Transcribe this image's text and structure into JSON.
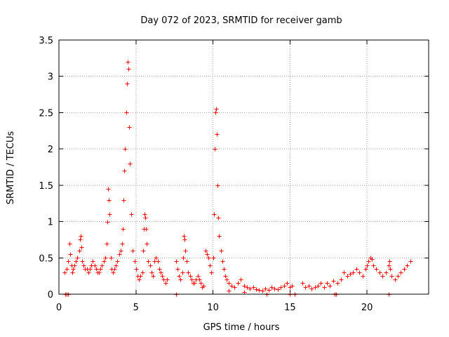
{
  "chart_data": {
    "type": "scatter",
    "title": "Day 072 of 2023, SRMTID for receiver gamb",
    "xlabel": "GPS time / hours",
    "ylabel": "SRMTID / TECUs",
    "xlim": [
      0,
      24
    ],
    "ylim": [
      0,
      3.5
    ],
    "xticks": [
      0,
      5,
      10,
      15,
      20
    ],
    "xtick_labels": [
      "0",
      "5",
      "10",
      "15",
      "20"
    ],
    "yticks": [
      0,
      0.5,
      1,
      1.5,
      2,
      2.5,
      3,
      3.5
    ],
    "ytick_labels": [
      "0",
      "0.5",
      "1",
      "1.5",
      "2",
      "2.5",
      "3",
      "3.5"
    ],
    "grid": true,
    "marker": "+",
    "color": "#ff0000",
    "series": [
      {
        "name": "gamb",
        "x": [
          0.35,
          0.5,
          0.6,
          0.7,
          0.75,
          0.8,
          0.85,
          0.9,
          1.0,
          1.1,
          1.2,
          1.3,
          1.35,
          1.4,
          1.45,
          1.5,
          1.6,
          1.7,
          1.8,
          1.9,
          2.0,
          2.1,
          2.2,
          2.3,
          2.4,
          2.5,
          2.6,
          2.7,
          2.8,
          2.9,
          3.0,
          3.1,
          3.15,
          3.2,
          3.25,
          3.3,
          3.35,
          3.4,
          3.5,
          3.6,
          3.7,
          3.8,
          3.9,
          4.0,
          4.1,
          4.15,
          4.2,
          4.25,
          4.3,
          4.35,
          4.4,
          4.45,
          4.5,
          4.55,
          4.6,
          4.7,
          4.8,
          4.9,
          5.0,
          5.1,
          5.2,
          5.3,
          5.4,
          5.45,
          5.5,
          5.55,
          5.6,
          5.65,
          5.7,
          5.8,
          5.9,
          6.0,
          6.1,
          6.2,
          6.3,
          6.4,
          6.5,
          6.6,
          6.7,
          6.8,
          6.9,
          7.0,
          7.6,
          7.7,
          7.8,
          7.9,
          8.0,
          8.05,
          8.1,
          8.15,
          8.2,
          8.3,
          8.4,
          8.5,
          8.6,
          8.7,
          8.8,
          8.9,
          9.0,
          9.1,
          9.2,
          9.3,
          9.4,
          9.5,
          9.6,
          9.7,
          9.8,
          9.9,
          10.0,
          10.05,
          10.1,
          10.15,
          10.2,
          10.25,
          10.3,
          10.35,
          10.4,
          10.5,
          10.6,
          10.7,
          10.8,
          10.9,
          11.0,
          11.2,
          11.4,
          11.6,
          11.8,
          12.0,
          12.2,
          12.4,
          12.6,
          12.8,
          13.0,
          13.2,
          13.4,
          13.6,
          13.8,
          14.0,
          14.2,
          14.4,
          14.6,
          14.8,
          15.0,
          15.1,
          15.8,
          16.0,
          16.2,
          16.4,
          16.6,
          16.8,
          17.0,
          17.2,
          17.4,
          17.6,
          17.8,
          18.1,
          18.3,
          18.5,
          18.7,
          18.9,
          19.1,
          19.3,
          19.5,
          19.7,
          19.9,
          20.0,
          20.1,
          20.2,
          20.3,
          20.4,
          20.6,
          20.8,
          21.0,
          21.2,
          21.4,
          21.45,
          21.5,
          21.6,
          21.8,
          22.0,
          22.2,
          22.4,
          22.6,
          22.8,
          0.4,
          0.5,
          0.6,
          7.6,
          11.0,
          12.0,
          13.5,
          15.0,
          15.3,
          17.9,
          18.0,
          21.4
        ],
        "y": [
          0.3,
          0.35,
          0.45,
          0.7,
          0.55,
          0.4,
          0.3,
          0.35,
          0.4,
          0.45,
          0.5,
          0.6,
          0.75,
          0.8,
          0.65,
          0.45,
          0.4,
          0.35,
          0.35,
          0.3,
          0.35,
          0.4,
          0.45,
          0.4,
          0.35,
          0.3,
          0.3,
          0.35,
          0.4,
          0.45,
          0.5,
          0.7,
          1.0,
          1.45,
          1.3,
          1.1,
          0.5,
          0.35,
          0.3,
          0.35,
          0.4,
          0.45,
          0.55,
          0.6,
          0.7,
          0.9,
          1.3,
          1.7,
          2.0,
          2.5,
          2.9,
          3.2,
          3.1,
          2.3,
          1.8,
          1.1,
          0.6,
          0.45,
          0.35,
          0.25,
          0.2,
          0.25,
          0.3,
          0.6,
          0.9,
          1.1,
          1.05,
          0.9,
          0.7,
          0.45,
          0.4,
          0.3,
          0.25,
          0.45,
          0.5,
          0.45,
          0.35,
          0.3,
          0.25,
          0.2,
          0.15,
          0.2,
          0.45,
          0.35,
          0.25,
          0.2,
          0.3,
          0.5,
          0.8,
          0.75,
          0.6,
          0.45,
          0.3,
          0.25,
          0.2,
          0.15,
          0.15,
          0.2,
          0.25,
          0.2,
          0.15,
          0.1,
          0.12,
          0.6,
          0.55,
          0.5,
          0.4,
          0.3,
          0.5,
          1.1,
          2.0,
          2.5,
          2.55,
          2.2,
          1.5,
          1.05,
          0.8,
          0.6,
          0.45,
          0.35,
          0.25,
          0.2,
          0.15,
          0.12,
          0.1,
          0.15,
          0.2,
          0.12,
          0.1,
          0.08,
          0.1,
          0.07,
          0.06,
          0.05,
          0.08,
          0.06,
          0.1,
          0.08,
          0.07,
          0.1,
          0.12,
          0.15,
          0.1,
          0.12,
          0.15,
          0.1,
          0.12,
          0.08,
          0.1,
          0.12,
          0.15,
          0.1,
          0.15,
          0.12,
          0.18,
          0.15,
          0.2,
          0.3,
          0.25,
          0.28,
          0.3,
          0.35,
          0.3,
          0.25,
          0.35,
          0.4,
          0.45,
          0.5,
          0.48,
          0.4,
          0.35,
          0.3,
          0.25,
          0.3,
          0.4,
          0.45,
          0.35,
          0.25,
          0.2,
          0.25,
          0.3,
          0.35,
          0.4,
          0.45,
          0.0,
          0.0,
          0.0,
          0.0,
          0.05,
          0.03,
          0.0,
          0.0,
          0.0,
          0.0,
          0.0,
          0.0
        ]
      }
    ]
  }
}
